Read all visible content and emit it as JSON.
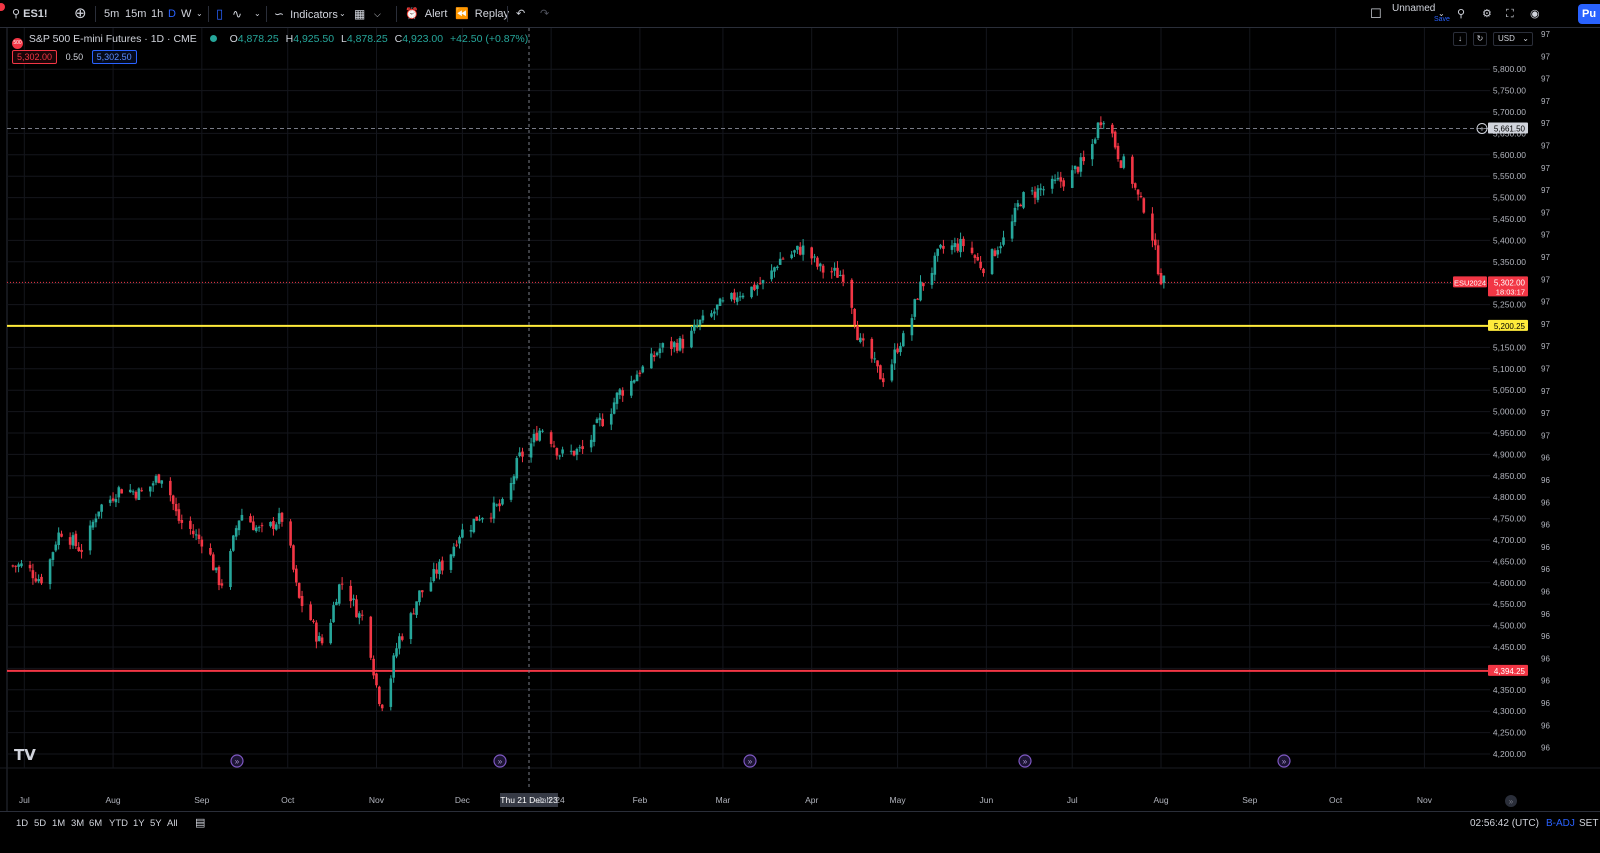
{
  "toolbar": {
    "symbol": "ES1!",
    "intervals": [
      "5m",
      "15m",
      "1h",
      "D",
      "W"
    ],
    "indicators_label": "Indicators",
    "alert_label": "Alert",
    "replay_label": "Replay",
    "layout_name": "Unnamed",
    "layout_sub": "Save",
    "publish_label": "Pu"
  },
  "legend": {
    "title": "S&P 500 E-mini Futures · 1D · CME",
    "badge": "500",
    "o_label": "O",
    "o": "4,878.25",
    "h_label": "H",
    "h": "4,925.50",
    "l_label": "L",
    "l": "4,878.25",
    "c_label": "C",
    "c": "4,923.00",
    "change": "+42.50 (+0.87%)"
  },
  "quote": {
    "sell": "5,302.00",
    "spread": "0.50",
    "buy": "5,302.50"
  },
  "controls": {
    "currency": "USD"
  },
  "chart_data": {
    "type": "candlestick",
    "y_range": [
      4175,
      5810
    ],
    "y_ticks": [
      4200,
      4250,
      4300,
      4350,
      4400,
      4450,
      4500,
      4550,
      4600,
      4650,
      4700,
      4750,
      4800,
      4850,
      4900,
      4950,
      5000,
      5050,
      5100,
      5150,
      5200,
      5250,
      5300,
      5350,
      5400,
      5450,
      5500,
      5550,
      5600,
      5650,
      5700,
      5750,
      5800
    ],
    "y_tick_labels": [
      "4,200.00",
      "4,250.00",
      "4,300.00",
      "4,350.00",
      "4,400.00",
      "4,450.00",
      "4,500.00",
      "4,550.00",
      "4,600.00",
      "4,650.00",
      "4,700.00",
      "4,750.00",
      "4,800.00",
      "4,850.00",
      "4,900.00",
      "4,950.00",
      "5,000.00",
      "5,050.00",
      "5,100.00",
      "5,150.00",
      "5,200.00",
      "5,250.00",
      "5,300.00",
      "5,350.00",
      "5,400.00",
      "5,450.00",
      "5,500.00",
      "5,550.00",
      "5,600.00",
      "5,650.00",
      "5,700.00",
      "5,750.00",
      "5,800.00"
    ],
    "second_scale_labels": [
      "97",
      "97",
      "97",
      "97",
      "97",
      "97",
      "97",
      "97",
      "97",
      "97",
      "97",
      "97",
      "97",
      "97",
      "97",
      "97",
      "97",
      "97",
      "97",
      "96",
      "96",
      "96",
      "96",
      "96",
      "96",
      "96",
      "96",
      "96",
      "96",
      "96",
      "96",
      "96",
      "96",
      "96",
      "96"
    ],
    "x_labels": [
      "Jul",
      "Aug",
      "Sep",
      "Oct",
      "Nov",
      "Dec",
      "Jan '24",
      "Feb",
      "Mar",
      "Apr",
      "May",
      "Jun",
      "Jul",
      "Aug",
      "Sep",
      "Oct",
      "Nov"
    ],
    "crosshair_x_label": "Thu 21 Dec '23",
    "close_series": [
      {
        "d": "2023-06-30",
        "c": 4640
      },
      {
        "d": "2023-07-07",
        "c": 4610
      },
      {
        "d": "2023-07-14",
        "c": 4720
      },
      {
        "d": "2023-07-21",
        "c": 4680
      },
      {
        "d": "2023-07-28",
        "c": 4780
      },
      {
        "d": "2023-08-04",
        "c": 4820
      },
      {
        "d": "2023-08-11",
        "c": 4810
      },
      {
        "d": "2023-08-18",
        "c": 4850
      },
      {
        "d": "2023-08-25",
        "c": 4740
      },
      {
        "d": "2023-09-01",
        "c": 4700
      },
      {
        "d": "2023-09-08",
        "c": 4600
      },
      {
        "d": "2023-09-15",
        "c": 4760
      },
      {
        "d": "2023-09-22",
        "c": 4720
      },
      {
        "d": "2023-09-29",
        "c": 4750
      },
      {
        "d": "2023-10-06",
        "c": 4550
      },
      {
        "d": "2023-10-13",
        "c": 4460
      },
      {
        "d": "2023-10-20",
        "c": 4600
      },
      {
        "d": "2023-10-27",
        "c": 4520
      },
      {
        "d": "2023-11-03",
        "c": 4320
      },
      {
        "d": "2023-11-10",
        "c": 4480
      },
      {
        "d": "2023-11-17",
        "c": 4580
      },
      {
        "d": "2023-11-24",
        "c": 4640
      },
      {
        "d": "2023-12-01",
        "c": 4720
      },
      {
        "d": "2023-12-08",
        "c": 4760
      },
      {
        "d": "2023-12-15",
        "c": 4780
      },
      {
        "d": "2023-12-22",
        "c": 4900
      },
      {
        "d": "2023-12-29",
        "c": 4960
      },
      {
        "d": "2024-01-05",
        "c": 4900
      },
      {
        "d": "2024-01-12",
        "c": 4910
      },
      {
        "d": "2024-01-19",
        "c": 4980
      },
      {
        "d": "2024-01-26",
        "c": 5050
      },
      {
        "d": "2024-02-02",
        "c": 5100
      },
      {
        "d": "2024-02-09",
        "c": 5150
      },
      {
        "d": "2024-02-16",
        "c": 5160
      },
      {
        "d": "2024-02-23",
        "c": 5210
      },
      {
        "d": "2024-03-01",
        "c": 5250
      },
      {
        "d": "2024-03-08",
        "c": 5280
      },
      {
        "d": "2024-03-15",
        "c": 5300
      },
      {
        "d": "2024-03-22",
        "c": 5360
      },
      {
        "d": "2024-03-29",
        "c": 5380
      },
      {
        "d": "2024-04-05",
        "c": 5330
      },
      {
        "d": "2024-04-12",
        "c": 5320
      },
      {
        "d": "2024-04-19",
        "c": 5150
      },
      {
        "d": "2024-04-26",
        "c": 5080
      },
      {
        "d": "2024-05-03",
        "c": 5170
      },
      {
        "d": "2024-05-10",
        "c": 5300
      },
      {
        "d": "2024-05-17",
        "c": 5380
      },
      {
        "d": "2024-05-24",
        "c": 5390
      },
      {
        "d": "2024-05-31",
        "c": 5340
      },
      {
        "d": "2024-06-07",
        "c": 5400
      },
      {
        "d": "2024-06-14",
        "c": 5500
      },
      {
        "d": "2024-06-21",
        "c": 5520
      },
      {
        "d": "2024-06-28",
        "c": 5540
      },
      {
        "d": "2024-07-05",
        "c": 5580
      },
      {
        "d": "2024-07-12",
        "c": 5690
      },
      {
        "d": "2024-07-19",
        "c": 5580
      },
      {
        "d": "2024-07-26",
        "c": 5480
      },
      {
        "d": "2024-08-02",
        "c": 5302
      }
    ],
    "levels": [
      {
        "price": 5661.5,
        "label": "5,661.50",
        "style": "dashed",
        "color": "#787b86"
      },
      {
        "price": 5302.0,
        "label": "5,302.00",
        "style": "dotted",
        "color": "#f23645",
        "tag": "ESU2024",
        "countdown": "18:03:17"
      },
      {
        "price": 5200.25,
        "label": "5,200.25",
        "style": "solid",
        "color": "#ffeb3b"
      },
      {
        "price": 4394.25,
        "label": "4,394.25",
        "style": "solid",
        "color": "#f23645"
      }
    ],
    "colors": {
      "up": "#26a69a",
      "down": "#f23645",
      "grid": "#14161c"
    }
  },
  "bottom": {
    "ranges": [
      "1D",
      "5D",
      "1M",
      "3M",
      "6M",
      "YTD",
      "1Y",
      "5Y",
      "All"
    ],
    "clock": "02:56:42 (UTC)",
    "adj": "B-ADJ",
    "session": "SET"
  }
}
